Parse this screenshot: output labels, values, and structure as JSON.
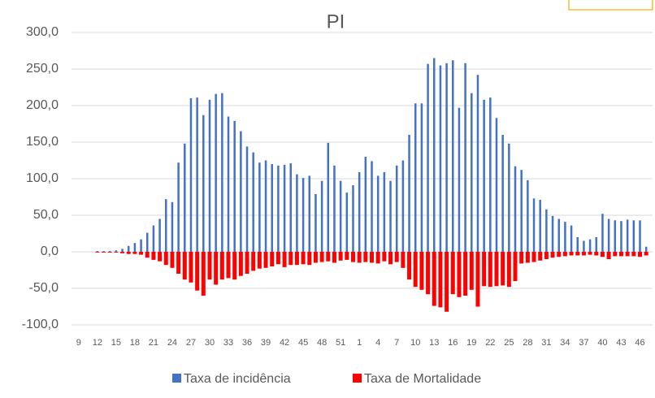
{
  "chart_data": {
    "type": "bar",
    "title": "PI",
    "categories": [
      "9",
      null,
      null,
      "12",
      null,
      null,
      "15",
      null,
      null,
      "18",
      null,
      null,
      "21",
      null,
      null,
      "24",
      null,
      null,
      "27",
      null,
      null,
      "30",
      null,
      null,
      "33",
      null,
      null,
      "36",
      null,
      null,
      "39",
      null,
      null,
      "42",
      null,
      null,
      "45",
      null,
      null,
      "48",
      null,
      null,
      "51",
      null,
      null,
      "1",
      null,
      null,
      "4",
      null,
      null,
      "7",
      null,
      null,
      "10",
      null,
      null,
      "13",
      null,
      null,
      "16",
      null,
      null,
      "19",
      null,
      null,
      "22",
      null,
      null,
      "25",
      null,
      null,
      "28",
      null,
      null,
      "31",
      null,
      null,
      "34",
      null,
      null,
      "37",
      null,
      null,
      "40",
      null,
      null,
      "43",
      null,
      null,
      "46",
      null
    ],
    "series": [
      {
        "name": "Taxa de incidência",
        "color": "#4472c4",
        "values": [
          0,
          0,
          0,
          1,
          1,
          1,
          2,
          4,
          8,
          12,
          17,
          26,
          36,
          45,
          72,
          68,
          122,
          148,
          210,
          211,
          187,
          208,
          216,
          217,
          185,
          179,
          165,
          144,
          136,
          122,
          125,
          120,
          118,
          119,
          121,
          106,
          101,
          104,
          79,
          97,
          149,
          118,
          97,
          81,
          91,
          109,
          130,
          124,
          104,
          109,
          97,
          118,
          125,
          160,
          203,
          203,
          257,
          265,
          255,
          258,
          262,
          197,
          258,
          217,
          242,
          208,
          211,
          183,
          160,
          148,
          117,
          112,
          98,
          73,
          71,
          58,
          49,
          45,
          41,
          36,
          20,
          15,
          17,
          20,
          52,
          45,
          43,
          42,
          44,
          43,
          43,
          7
        ]
      },
      {
        "name": "Taxa de Mortalidade",
        "color": "#ff0000",
        "values": [
          0,
          0,
          0,
          -1,
          -1,
          -1,
          -1,
          -2,
          -3,
          -3,
          -4,
          -8,
          -11,
          -13,
          -18,
          -22,
          -30,
          -38,
          -42,
          -53,
          -60,
          -38,
          -45,
          -38,
          -36,
          -38,
          -33,
          -30,
          -26,
          -23,
          -22,
          -20,
          -17,
          -21,
          -18,
          -18,
          -17,
          -18,
          -15,
          -14,
          -13,
          -15,
          -12,
          -11,
          -14,
          -15,
          -14,
          -15,
          -16,
          -13,
          -17,
          -14,
          -22,
          -38,
          -48,
          -52,
          -58,
          -74,
          -76,
          -82,
          -58,
          -62,
          -60,
          -52,
          -75,
          -47,
          -48,
          -47,
          -46,
          -48,
          -40,
          -16,
          -15,
          -14,
          -12,
          -10,
          -8,
          -7,
          -6,
          -5,
          -5,
          -5,
          -4,
          -5,
          -7,
          -10,
          -6,
          -6,
          -6,
          -6,
          -7,
          -5
        ]
      }
    ],
    "ylim": [
      -100,
      300
    ],
    "yticks": [
      {
        "value": -100,
        "label": "-100,0"
      },
      {
        "value": -50,
        "label": "-50,0"
      },
      {
        "value": 0,
        "label": "0,0"
      },
      {
        "value": 50,
        "label": "50,0"
      },
      {
        "value": 100,
        "label": "100,0"
      },
      {
        "value": 150,
        "label": "150,0"
      },
      {
        "value": 200,
        "label": "200,0"
      },
      {
        "value": 250,
        "label": "250,0"
      },
      {
        "value": 300,
        "label": "300,0"
      }
    ],
    "grid": true,
    "legend": "bottom"
  }
}
